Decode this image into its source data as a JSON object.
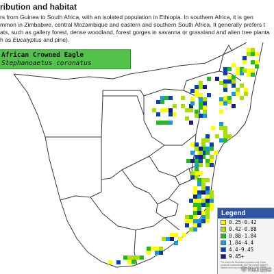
{
  "heading": "ribution and habitat",
  "paragraph": {
    "line1": "rs from Guinea to South Africa, with an isolated population in Ethiopia. In southern Africa, it is gen",
    "line2": "mmon in Zimbabwe, central Mozambique and eastern and southern South Africa. It generally prefers t",
    "line3": "ats, such as gallery forest, dense woodland, forest gorges in savanna or grassland and alien tree planta",
    "line4_prefix": "h as ",
    "line4_italic": "Eucalyptus",
    "line4_suffix": " and pine)."
  },
  "species": {
    "common_name": "African Crowned Eagle",
    "scientific_name": "Stephanoaetus coronatus"
  },
  "legend": {
    "title": "Legend",
    "entries": [
      {
        "label": "0.25-0.42",
        "color": "#ffff00"
      },
      {
        "label": "0.42-0.88",
        "color": "#a8e000"
      },
      {
        "label": "0.88-1.84",
        "color": "#22bb22"
      },
      {
        "label": "1.84-4.4",
        "color": "#1a9ad8"
      },
      {
        "label": "4.4-9.45",
        "color": "#0a3fb0"
      },
      {
        "label": "9.45+",
        "color": "#1a1a80"
      }
    ],
    "note": "The map is for illustrative purposes only. It was produced automatically from the current SABAP2 dataset and may contain errors."
  },
  "watermark": "© Neil Ebe",
  "colors": {
    "species_box": "#52c24b",
    "legend_title_bg": "#2f55a0",
    "map_outline": "#333333"
  }
}
